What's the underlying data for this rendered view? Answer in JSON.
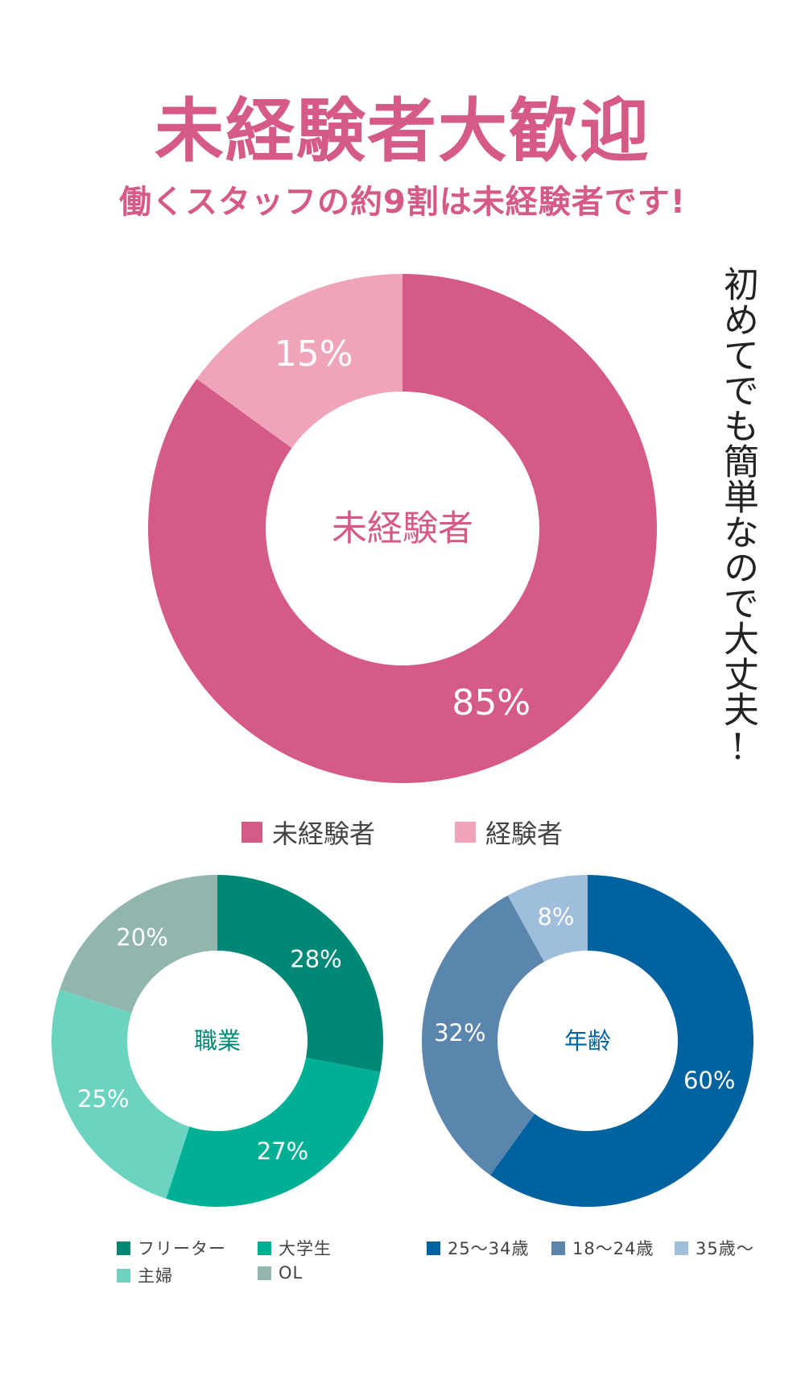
{
  "header": {
    "title": "未経験者大歓迎",
    "subtitle": "働くスタッフの約9割は未経験者です!"
  },
  "side_note": "初めてでも簡単なので大丈夫!",
  "colors": {
    "accent": "#d55a87",
    "teal_dark": "#008876",
    "teal": "#00b095",
    "teal_light": "#6dd3c1",
    "sage": "#92b6ad",
    "blue_dark": "#00629e",
    "blue": "#5a86ad",
    "blue_light": "#9fbedb"
  },
  "chart_data": [
    {
      "type": "pie",
      "donut": true,
      "center_label": "未経験者",
      "slices": [
        {
          "label": "未経験者",
          "value": 85,
          "value_label": "85%",
          "color": "#d55a87"
        },
        {
          "label": "経験者",
          "value": 15,
          "value_label": "15%",
          "color": "#efa4b9"
        }
      ],
      "legend": "bottom"
    },
    {
      "type": "pie",
      "donut": true,
      "center_label": "職業",
      "slices": [
        {
          "label": "フリーター",
          "value": 28,
          "value_label": "28%",
          "color": "#008876"
        },
        {
          "label": "大学生",
          "value": 27,
          "value_label": "27%",
          "color": "#00b095"
        },
        {
          "label": "主婦",
          "value": 25,
          "value_label": "25%",
          "color": "#6dd3c1"
        },
        {
          "label": "OL",
          "value": 20,
          "value_label": "20%",
          "color": "#92b6ad"
        }
      ],
      "legend": "bottom"
    },
    {
      "type": "pie",
      "donut": true,
      "center_label": "年齢",
      "slices": [
        {
          "label": "25〜34歳",
          "value": 60,
          "value_label": "60%",
          "color": "#00629e"
        },
        {
          "label": "18〜24歳",
          "value": 32,
          "value_label": "32%",
          "color": "#5a86ad"
        },
        {
          "label": "35歳〜",
          "value": 8,
          "value_label": "8%",
          "color": "#9fbedb"
        }
      ],
      "legend": "bottom"
    }
  ]
}
